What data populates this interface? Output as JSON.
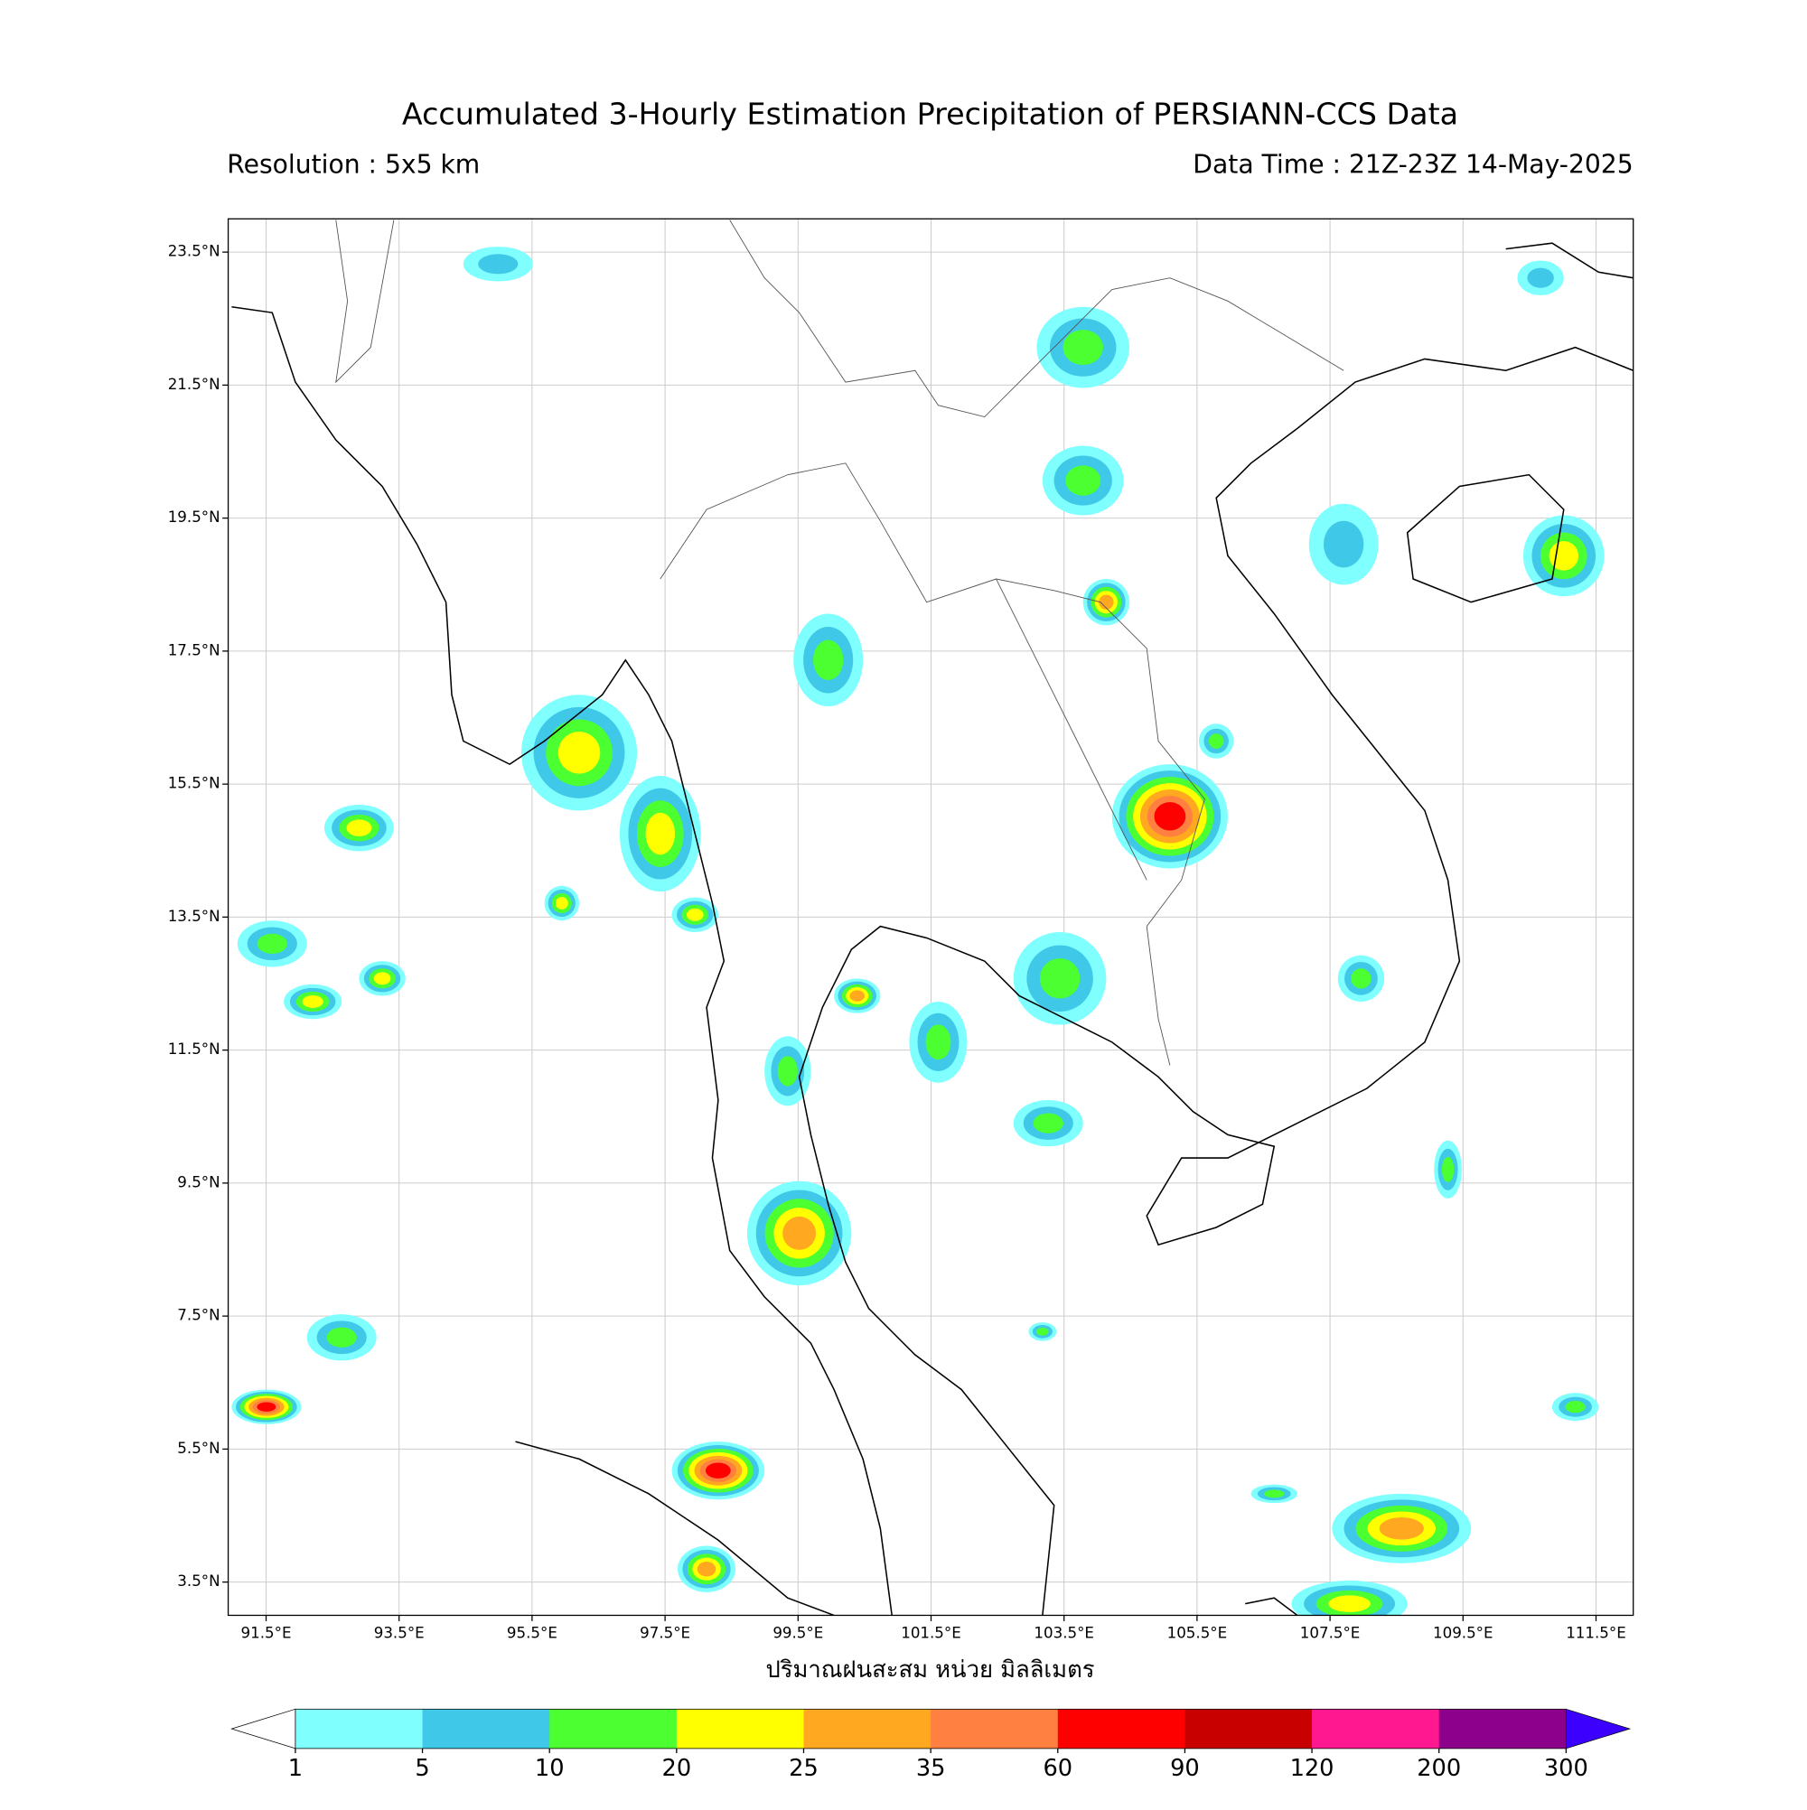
{
  "title": "Accumulated 3-Hourly Estimation Precipitation of PERSIANN-CCS Data",
  "resolution": "Resolution : 5x5 km",
  "data_time": "Data Time : 21Z-23Z 14-May-2025",
  "map": {
    "xlim": [
      90.93,
      112.06
    ],
    "ylim": [
      3.0,
      24.0
    ],
    "grid": true,
    "xticks": [
      {
        "value": 91.5,
        "label": "91.5°E"
      },
      {
        "value": 93.5,
        "label": "93.5°E"
      },
      {
        "value": 95.5,
        "label": "95.5°E"
      },
      {
        "value": 97.5,
        "label": "97.5°E"
      },
      {
        "value": 99.5,
        "label": "99.5°E"
      },
      {
        "value": 101.5,
        "label": "101.5°E"
      },
      {
        "value": 103.5,
        "label": "103.5°E"
      },
      {
        "value": 105.5,
        "label": "105.5°E"
      },
      {
        "value": 107.5,
        "label": "107.5°E"
      },
      {
        "value": 109.5,
        "label": "109.5°E"
      },
      {
        "value": 111.5,
        "label": "111.5°E"
      }
    ],
    "yticks": [
      {
        "value": 23.5,
        "label": "23.5°N"
      },
      {
        "value": 21.5,
        "label": "21.5°N"
      },
      {
        "value": 19.5,
        "label": "19.5°N"
      },
      {
        "value": 17.5,
        "label": "17.5°N"
      },
      {
        "value": 15.5,
        "label": "15.5°N"
      },
      {
        "value": 13.5,
        "label": "13.5°N"
      },
      {
        "value": 11.5,
        "label": "11.5°N"
      },
      {
        "value": 9.5,
        "label": "9.5°N"
      },
      {
        "value": 7.5,
        "label": "7.5°N"
      },
      {
        "value": 5.5,
        "label": "5.5°N"
      },
      {
        "value": 3.5,
        "label": "3.5°N"
      }
    ]
  },
  "xlabel": "ปริมาณฝนสะสม หน่วย มิลลิเมตร",
  "colorbar": {
    "levels": [
      1,
      5,
      10,
      20,
      25,
      35,
      60,
      90,
      120,
      200,
      300
    ],
    "colors": [
      "#80ffff",
      "#40c8e8",
      "#4cff30",
      "#ffff00",
      "#ffa820",
      "#ff8040",
      "#ff0000",
      "#c80000",
      "#ff1890",
      "#8c008c"
    ],
    "under_color": "#ffffff",
    "over_color": "#3c00ff"
  }
}
